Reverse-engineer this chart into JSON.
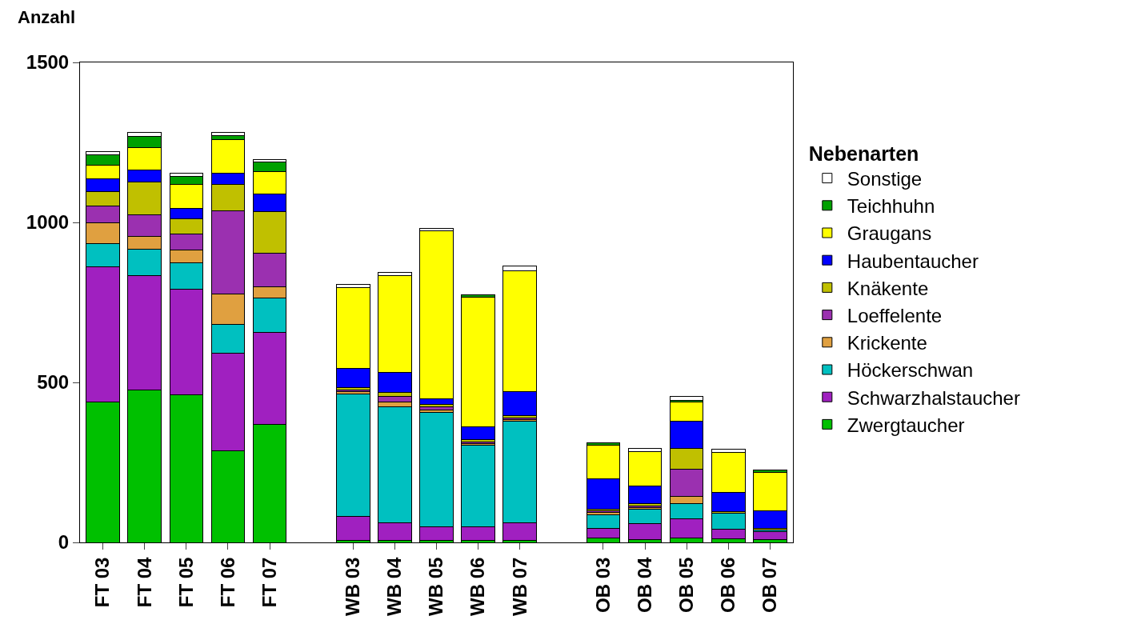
{
  "chart_data": {
    "type": "bar",
    "stacked": true,
    "ylabel": "Anzahl",
    "legend_title": "Nebenarten",
    "legend": "right",
    "grid": false,
    "categories": [
      "FT 03",
      "FT 04",
      "FT 05",
      "FT 06",
      "FT 07",
      null,
      "WB 03",
      "WB 04",
      "WB 05",
      "WB 06",
      "WB 07",
      null,
      "OB 03",
      "OB 04",
      "OB 05",
      "OB 06",
      "OB 07"
    ],
    "ylim": [
      0,
      1500
    ],
    "yticks": [
      0,
      500,
      1000,
      1500
    ],
    "series": [
      {
        "name": "Zwergtaucher",
        "color": "#00c000",
        "values": [
          440,
          477,
          462,
          287,
          368,
          null,
          7,
          7,
          7,
          7,
          7,
          null,
          13,
          8,
          13,
          12,
          8
        ]
      },
      {
        "name": "Schwarzhalstaucher",
        "color": "#a020c0",
        "values": [
          421,
          358,
          329,
          304,
          288,
          null,
          75,
          55,
          42,
          42,
          55,
          null,
          32,
          50,
          61,
          29,
          25
        ]
      },
      {
        "name": "Höckerschwan",
        "color": "#00c0c0",
        "values": [
          73,
          81,
          82,
          90,
          107,
          null,
          383,
          362,
          358,
          254,
          316,
          null,
          42,
          45,
          48,
          51,
          6
        ]
      },
      {
        "name": "Krickente",
        "color": "#e0a040",
        "values": [
          66,
          40,
          40,
          96,
          36,
          null,
          6,
          14,
          8,
          6,
          6,
          null,
          6,
          6,
          21,
          0,
          0
        ]
      },
      {
        "name": "Loeffelente",
        "color": "#9b30b0",
        "values": [
          52,
          67,
          50,
          260,
          104,
          null,
          6,
          18,
          8,
          6,
          6,
          null,
          6,
          6,
          86,
          0,
          0
        ]
      },
      {
        "name": "Knäkente",
        "color": "#c0c000",
        "values": [
          44,
          104,
          49,
          83,
          130,
          null,
          6,
          14,
          9,
          6,
          6,
          null,
          6,
          6,
          65,
          4,
          6
        ]
      },
      {
        "name": "Haubentaucher",
        "color": "#0000ff",
        "values": [
          40,
          37,
          33,
          33,
          56,
          null,
          62,
          61,
          16,
          40,
          75,
          null,
          94,
          56,
          85,
          60,
          54
        ]
      },
      {
        "name": "Graugans",
        "color": "#ffff00",
        "values": [
          43,
          70,
          73,
          106,
          69,
          null,
          252,
          302,
          527,
          406,
          379,
          null,
          104,
          107,
          59,
          125,
          119
        ]
      },
      {
        "name": "Teichhuhn",
        "color": "#00a000",
        "values": [
          33,
          36,
          25,
          13,
          30,
          null,
          0,
          0,
          0,
          8,
          0,
          null,
          8,
          0,
          6,
          0,
          9
        ]
      },
      {
        "name": "Sonstige",
        "color": "#ffffff",
        "values": [
          9,
          11,
          10,
          9,
          9,
          null,
          9,
          10,
          7,
          0,
          13,
          null,
          0,
          10,
          12,
          10,
          0
        ]
      }
    ]
  }
}
